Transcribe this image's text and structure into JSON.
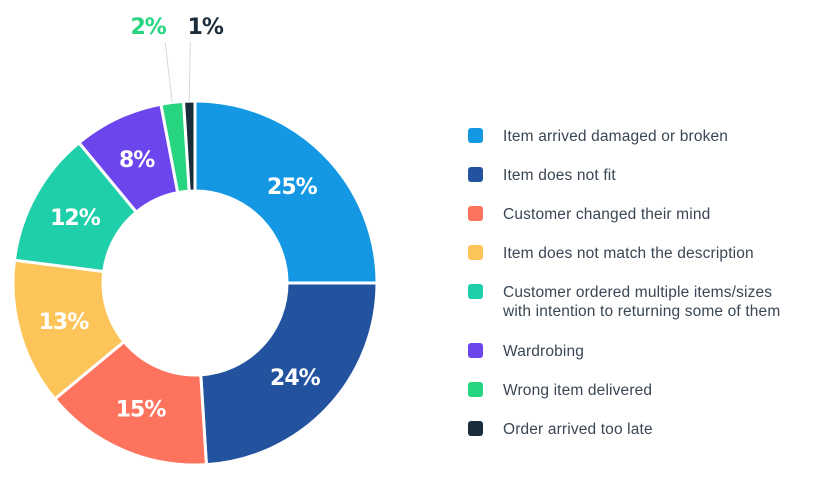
{
  "chart_data": {
    "type": "pie",
    "donut": true,
    "title": "",
    "slices": [
      {
        "label": "Item arrived damaged or broken",
        "value": 25,
        "display": "25%",
        "color": "#1598e3"
      },
      {
        "label": "Item does not fit",
        "value": 24,
        "display": "24%",
        "color": "#23539f"
      },
      {
        "label": "Customer changed their mind",
        "value": 15,
        "display": "15%",
        "color": "#fd735d"
      },
      {
        "label": "Item does not match the description",
        "value": 13,
        "display": "13%",
        "color": "#fdc45a"
      },
      {
        "label": "Customer ordered multiple items/sizes\nwith intention to returning some of them",
        "value": 12,
        "display": "12%",
        "color": "#1ecfa9"
      },
      {
        "label": "Wardrobing",
        "value": 8,
        "display": "8%",
        "color": "#6c45ec"
      },
      {
        "label": "Wrong item delivered",
        "value": 2,
        "display": "2%",
        "color": "#27d47f"
      },
      {
        "label": "Order arrived too late",
        "value": 1,
        "display": "1%",
        "color": "#1a2b3a"
      }
    ],
    "legend_position": "right"
  }
}
